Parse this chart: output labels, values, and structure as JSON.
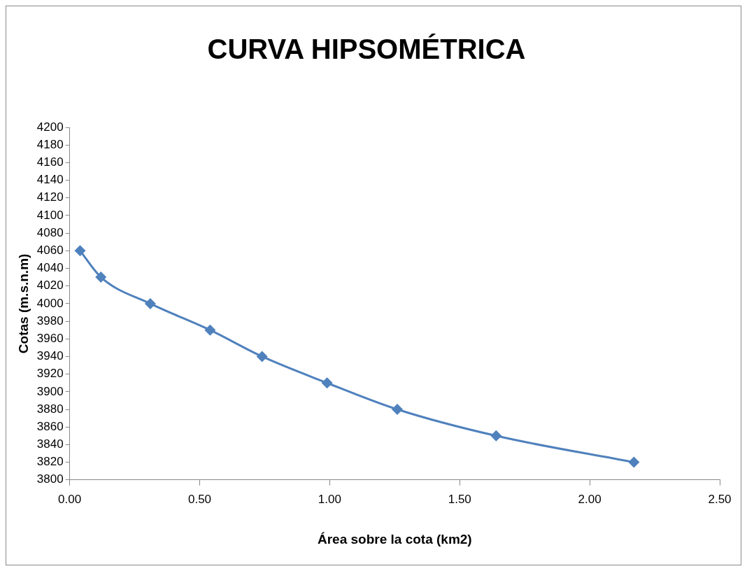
{
  "chart_data": {
    "type": "line",
    "title": "CURVA HIPSOMÉTRICA",
    "xlabel": "Área sobre la cota (km2)",
    "ylabel": "Cotas (m.s.n.m)",
    "x": [
      0.04,
      0.12,
      0.31,
      0.54,
      0.74,
      0.99,
      1.26,
      1.64,
      2.17
    ],
    "series": [
      {
        "color": "#4f81bd",
        "values": [
          4060,
          4030,
          4000,
          3970,
          3940,
          3910,
          3880,
          3850,
          3820
        ]
      }
    ],
    "xlim": [
      0,
      2.5
    ],
    "xticks": [
      {
        "value": 0,
        "label": "0.00"
      },
      {
        "value": 0.5,
        "label": "0.50"
      },
      {
        "value": 1,
        "label": "1.00"
      },
      {
        "value": 1.5,
        "label": "1.50"
      },
      {
        "value": 2,
        "label": "2.00"
      },
      {
        "value": 2.5,
        "label": "2.50"
      }
    ],
    "ylim": [
      3800,
      4200
    ],
    "yticks": [
      3800,
      3820,
      3840,
      3860,
      3880,
      3900,
      3920,
      3940,
      3960,
      3980,
      4000,
      4020,
      4040,
      4060,
      4080,
      4100,
      4120,
      4140,
      4160,
      4180,
      4200
    ],
    "grid": false,
    "legend": false,
    "marker": "diamond",
    "line_style": "solid"
  }
}
